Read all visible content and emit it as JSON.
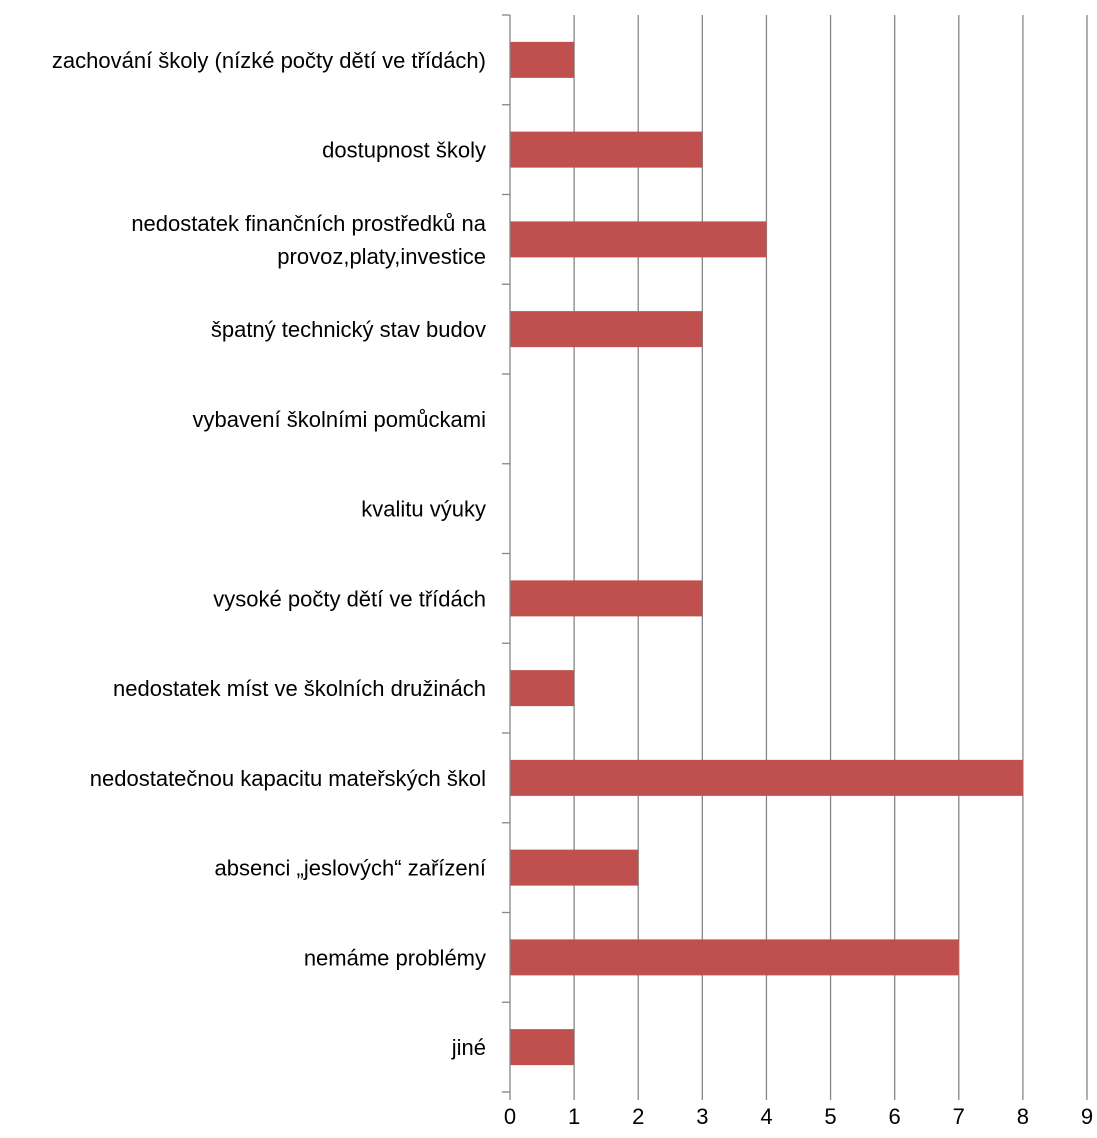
{
  "chart_data": {
    "type": "bar",
    "orientation": "horizontal",
    "categories": [
      [
        "zachování školy (nízké počty dětí ve třídách)"
      ],
      [
        "dostupnost školy"
      ],
      [
        "nedostatek finančních prostředků na",
        "provoz,platy,investice"
      ],
      [
        "špatný technický stav budov"
      ],
      [
        "vybavení školními pomůckami"
      ],
      [
        "kvalitu výuky"
      ],
      [
        "vysoké počty dětí ve třídách"
      ],
      [
        "nedostatek míst ve školních družinách"
      ],
      [
        "nedostatečnou kapacitu mateřských škol"
      ],
      [
        "absenci „jeslových“ zařízení"
      ],
      [
        "nemáme problémy"
      ],
      [
        "jiné"
      ]
    ],
    "values": [
      1,
      3,
      4,
      3,
      0,
      0,
      3,
      1,
      8,
      2,
      7,
      1
    ],
    "xlim": [
      0,
      9
    ],
    "xticks": [
      "0",
      "1",
      "2",
      "3",
      "4",
      "5",
      "6",
      "7",
      "8",
      "9"
    ],
    "title": "",
    "xlabel": "",
    "ylabel": "",
    "grid": "vertical",
    "legend": "none",
    "colors": {
      "bar": "#C0504D",
      "grid": "#868686",
      "axis": "#868686"
    }
  }
}
